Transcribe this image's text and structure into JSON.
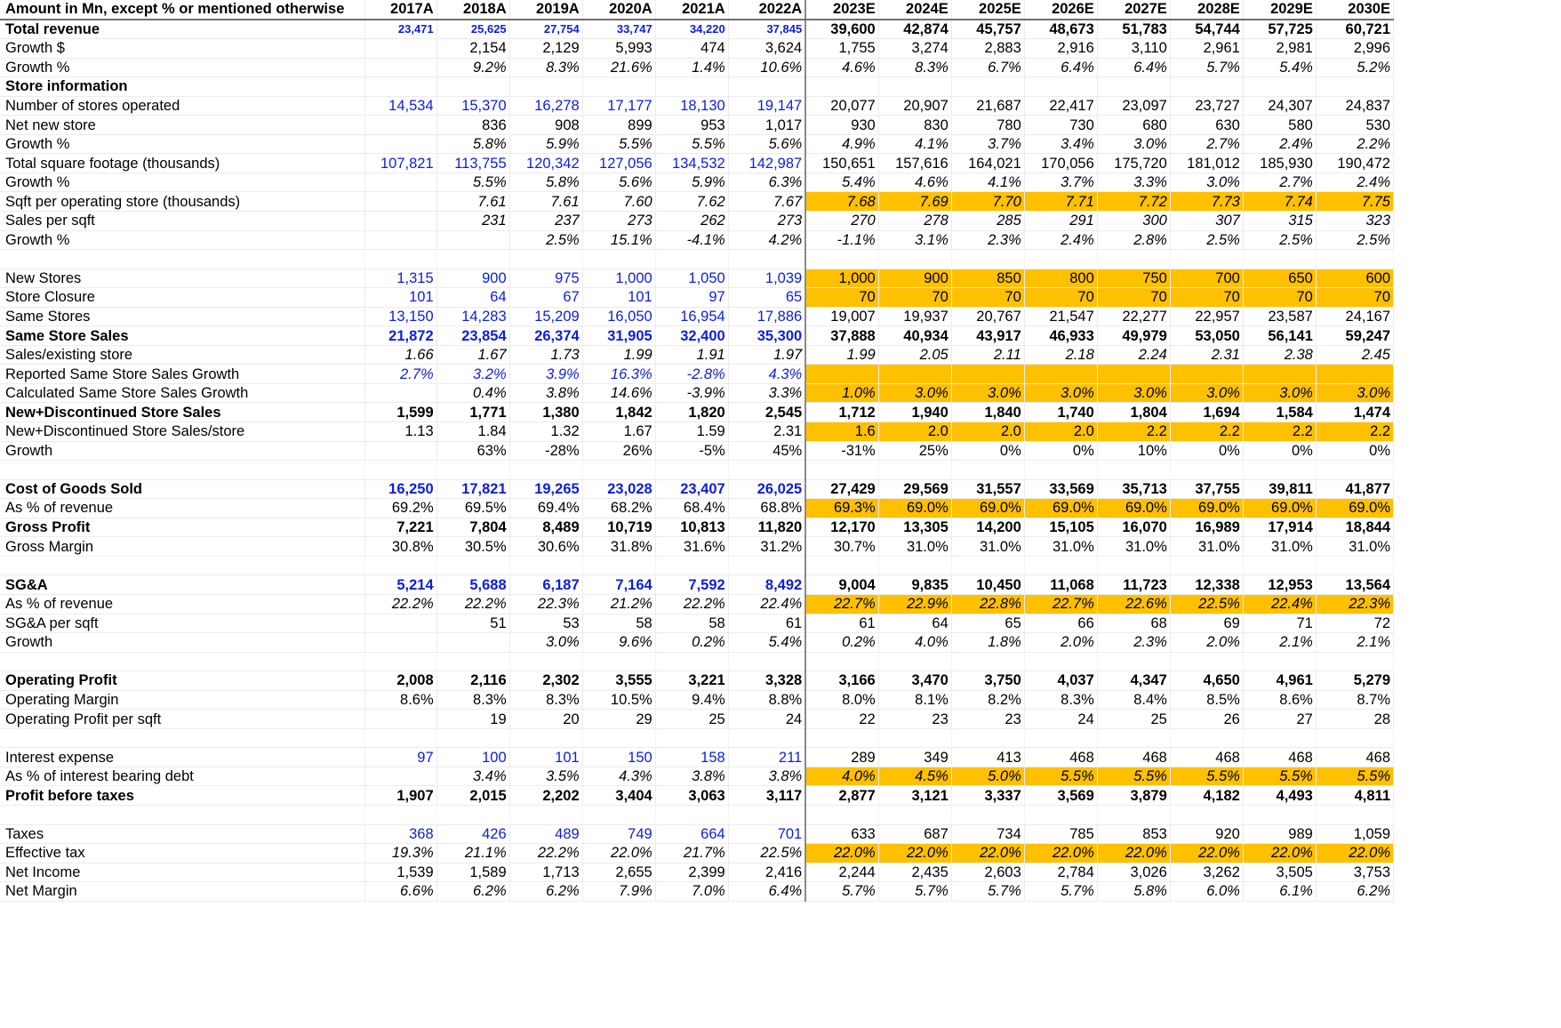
{
  "sheet": {
    "header": [
      "Amount in Mn, except % or mentioned otherwise",
      "2017A",
      "2018A",
      "2019A",
      "2020A",
      "2021A",
      "2022A",
      "2023E",
      "2024E",
      "2025E",
      "2026E",
      "2027E",
      "2028E",
      "2029E",
      "2030E"
    ],
    "highlight_color": "#ffc000",
    "hardcode_color": "#0b1ee0",
    "rows": [
      {
        "label": "Total revenue",
        "style": "bold",
        "values": [
          "23,471",
          "25,625",
          "27,754",
          "33,747",
          "34,220",
          "37,845",
          "39,600",
          "42,874",
          "45,757",
          "48,673",
          "51,783",
          "54,744",
          "57,725",
          "60,721"
        ],
        "blue": [
          0,
          1,
          2,
          3,
          4,
          5
        ],
        "small": [
          0,
          1,
          2,
          3,
          4,
          5
        ]
      },
      {
        "label": "Growth $",
        "style": "",
        "values": [
          "",
          "2,154",
          "2,129",
          "5,993",
          "474",
          "3,624",
          "1,755",
          "3,274",
          "2,883",
          "2,916",
          "3,110",
          "2,961",
          "2,981",
          "2,996"
        ]
      },
      {
        "label": "Growth %",
        "style": "italic",
        "values": [
          "",
          "9.2%",
          "8.3%",
          "21.6%",
          "1.4%",
          "10.6%",
          "4.6%",
          "8.3%",
          "6.7%",
          "6.4%",
          "6.4%",
          "5.7%",
          "5.4%",
          "5.2%"
        ]
      },
      {
        "label": "Store information",
        "style": "bold",
        "values": [
          "",
          "",
          "",
          "",
          "",
          "",
          "",
          "",
          "",
          "",
          "",
          "",
          "",
          ""
        ]
      },
      {
        "label": "Number of stores operated",
        "style": "",
        "values": [
          "14,534",
          "15,370",
          "16,278",
          "17,177",
          "18,130",
          "19,147",
          "20,077",
          "20,907",
          "21,687",
          "22,417",
          "23,097",
          "23,727",
          "24,307",
          "24,837"
        ],
        "blue": [
          0,
          1,
          2,
          3,
          4,
          5
        ]
      },
      {
        "label": "Net new store",
        "style": "",
        "values": [
          "",
          "836",
          "908",
          "899",
          "953",
          "1,017",
          "930",
          "830",
          "780",
          "730",
          "680",
          "630",
          "580",
          "530"
        ]
      },
      {
        "label": "Growth %",
        "style": "italic",
        "values": [
          "",
          "5.8%",
          "5.9%",
          "5.5%",
          "5.5%",
          "5.6%",
          "4.9%",
          "4.1%",
          "3.7%",
          "3.4%",
          "3.0%",
          "2.7%",
          "2.4%",
          "2.2%"
        ]
      },
      {
        "label": "Total square footage (thousands)",
        "style": "",
        "values": [
          "107,821",
          "113,755",
          "120,342",
          "127,056",
          "134,532",
          "142,987",
          "150,651",
          "157,616",
          "164,021",
          "170,056",
          "175,720",
          "181,012",
          "185,930",
          "190,472"
        ],
        "blue": [
          0,
          1,
          2,
          3,
          4,
          5
        ]
      },
      {
        "label": "Growth %",
        "style": "italic",
        "values": [
          "",
          "5.5%",
          "5.8%",
          "5.6%",
          "5.9%",
          "6.3%",
          "5.4%",
          "4.6%",
          "4.1%",
          "3.7%",
          "3.3%",
          "3.0%",
          "2.7%",
          "2.4%"
        ]
      },
      {
        "label": "Sqft per operating store (thousands)",
        "style": "italic",
        "values": [
          "",
          "7.61",
          "7.61",
          "7.60",
          "7.62",
          "7.67",
          "7.68",
          "7.69",
          "7.70",
          "7.71",
          "7.72",
          "7.73",
          "7.74",
          "7.75"
        ],
        "hl": [
          6,
          7,
          8,
          9,
          10,
          11,
          12,
          13
        ]
      },
      {
        "label": "Sales per sqft",
        "style": "italic",
        "values": [
          "",
          "231",
          "237",
          "273",
          "262",
          "273",
          "270",
          "278",
          "285",
          "291",
          "300",
          "307",
          "315",
          "323"
        ]
      },
      {
        "label": "Growth %",
        "style": "italic",
        "values": [
          "",
          "",
          "2.5%",
          "15.1%",
          "-4.1%",
          "4.2%",
          "-1.1%",
          "3.1%",
          "2.3%",
          "2.4%",
          "2.8%",
          "2.5%",
          "2.5%",
          "2.5%"
        ]
      },
      {
        "label": "",
        "style": "blank",
        "values": [
          "",
          "",
          "",
          "",
          "",
          "",
          "",
          "",
          "",
          "",
          "",
          "",
          "",
          ""
        ]
      },
      {
        "label": "New Stores",
        "style": "",
        "values": [
          "1,315",
          "900",
          "975",
          "1,000",
          "1,050",
          "1,039",
          "1,000",
          "900",
          "850",
          "800",
          "750",
          "700",
          "650",
          "600"
        ],
        "blue": [
          0,
          1,
          2,
          3,
          4,
          5
        ],
        "hl": [
          6,
          7,
          8,
          9,
          10,
          11,
          12,
          13
        ]
      },
      {
        "label": "Store Closure",
        "style": "",
        "values": [
          "101",
          "64",
          "67",
          "101",
          "97",
          "65",
          "70",
          "70",
          "70",
          "70",
          "70",
          "70",
          "70",
          "70"
        ],
        "blue": [
          0,
          1,
          2,
          3,
          4,
          5
        ],
        "hl": [
          6,
          7,
          8,
          9,
          10,
          11,
          12,
          13
        ]
      },
      {
        "label": "Same Stores",
        "style": "",
        "values": [
          "13,150",
          "14,283",
          "15,209",
          "16,050",
          "16,954",
          "17,886",
          "19,007",
          "19,937",
          "20,767",
          "21,547",
          "22,277",
          "22,957",
          "23,587",
          "24,167"
        ],
        "blue": [
          0,
          1,
          2,
          3,
          4,
          5
        ]
      },
      {
        "label": "Same Store Sales",
        "style": "bold",
        "values": [
          "21,872",
          "23,854",
          "26,374",
          "31,905",
          "32,400",
          "35,300",
          "37,888",
          "40,934",
          "43,917",
          "46,933",
          "49,979",
          "53,050",
          "56,141",
          "59,247"
        ],
        "blue": [
          0,
          1,
          2,
          3,
          4,
          5
        ]
      },
      {
        "label": "Sales/existing store",
        "style": "italic",
        "values": [
          "1.66",
          "1.67",
          "1.73",
          "1.99",
          "1.91",
          "1.97",
          "1.99",
          "2.05",
          "2.11",
          "2.18",
          "2.24",
          "2.31",
          "2.38",
          "2.45"
        ]
      },
      {
        "label": "Reported Same Store Sales Growth",
        "style": "italic",
        "values": [
          "2.7%",
          "3.2%",
          "3.9%",
          "16.3%",
          "-2.8%",
          "4.3%",
          "",
          "",
          "",
          "",
          "",
          "",
          "",
          ""
        ],
        "blue": [
          0,
          1,
          2,
          3,
          4,
          5
        ],
        "hl": [
          6,
          7,
          8,
          9,
          10,
          11,
          12,
          13
        ]
      },
      {
        "label": "Calculated Same Store Sales Growth",
        "style": "italic",
        "values": [
          "",
          "0.4%",
          "3.8%",
          "14.6%",
          "-3.9%",
          "3.3%",
          "1.0%",
          "3.0%",
          "3.0%",
          "3.0%",
          "3.0%",
          "3.0%",
          "3.0%",
          "3.0%"
        ],
        "hl": [
          6,
          7,
          8,
          9,
          10,
          11,
          12,
          13
        ]
      },
      {
        "label": "New+Discontinued Store Sales",
        "style": "bold",
        "values": [
          "1,599",
          "1,771",
          "1,380",
          "1,842",
          "1,820",
          "2,545",
          "1,712",
          "1,940",
          "1,840",
          "1,740",
          "1,804",
          "1,694",
          "1,584",
          "1,474"
        ]
      },
      {
        "label": "New+Discontinued Store Sales/store",
        "style": "",
        "values": [
          "1.13",
          "1.84",
          "1.32",
          "1.67",
          "1.59",
          "2.31",
          "1.6",
          "2.0",
          "2.0",
          "2.0",
          "2.2",
          "2.2",
          "2.2",
          "2.2"
        ],
        "hl": [
          6,
          7,
          8,
          9,
          10,
          11,
          12,
          13
        ]
      },
      {
        "label": "Growth",
        "style": "",
        "values": [
          "",
          "63%",
          "-28%",
          "26%",
          "-5%",
          "45%",
          "-31%",
          "25%",
          "0%",
          "0%",
          "10%",
          "0%",
          "0%",
          "0%"
        ]
      },
      {
        "label": "",
        "style": "blank",
        "values": [
          "",
          "",
          "",
          "",
          "",
          "",
          "",
          "",
          "",
          "",
          "",
          "",
          "",
          ""
        ]
      },
      {
        "label": "Cost of Goods Sold",
        "style": "bold",
        "values": [
          "16,250",
          "17,821",
          "19,265",
          "23,028",
          "23,407",
          "26,025",
          "27,429",
          "29,569",
          "31,557",
          "33,569",
          "35,713",
          "37,755",
          "39,811",
          "41,877"
        ],
        "blue": [
          0,
          1,
          2,
          3,
          4,
          5
        ]
      },
      {
        "label": "As % of revenue",
        "style": "",
        "values": [
          "69.2%",
          "69.5%",
          "69.4%",
          "68.2%",
          "68.4%",
          "68.8%",
          "69.3%",
          "69.0%",
          "69.0%",
          "69.0%",
          "69.0%",
          "69.0%",
          "69.0%",
          "69.0%"
        ],
        "hl": [
          6,
          7,
          8,
          9,
          10,
          11,
          12,
          13
        ]
      },
      {
        "label": "Gross Profit",
        "style": "bold",
        "values": [
          "7,221",
          "7,804",
          "8,489",
          "10,719",
          "10,813",
          "11,820",
          "12,170",
          "13,305",
          "14,200",
          "15,105",
          "16,070",
          "16,989",
          "17,914",
          "18,844"
        ]
      },
      {
        "label": "Gross Margin",
        "style": "",
        "values": [
          "30.8%",
          "30.5%",
          "30.6%",
          "31.8%",
          "31.6%",
          "31.2%",
          "30.7%",
          "31.0%",
          "31.0%",
          "31.0%",
          "31.0%",
          "31.0%",
          "31.0%",
          "31.0%"
        ]
      },
      {
        "label": "",
        "style": "blank",
        "values": [
          "",
          "",
          "",
          "",
          "",
          "",
          "",
          "",
          "",
          "",
          "",
          "",
          "",
          ""
        ]
      },
      {
        "label": "SG&A",
        "style": "bold",
        "values": [
          "5,214",
          "5,688",
          "6,187",
          "7,164",
          "7,592",
          "8,492",
          "9,004",
          "9,835",
          "10,450",
          "11,068",
          "11,723",
          "12,338",
          "12,953",
          "13,564"
        ],
        "blue": [
          0,
          1,
          2,
          3,
          4,
          5
        ]
      },
      {
        "label": "As % of revenue",
        "style": "italic",
        "values": [
          "22.2%",
          "22.2%",
          "22.3%",
          "21.2%",
          "22.2%",
          "22.4%",
          "22.7%",
          "22.9%",
          "22.8%",
          "22.7%",
          "22.6%",
          "22.5%",
          "22.4%",
          "22.3%"
        ],
        "hl": [
          6,
          7,
          8,
          9,
          10,
          11,
          12,
          13
        ]
      },
      {
        "label": "SG&A per sqft",
        "style": "",
        "values": [
          "",
          "51",
          "53",
          "58",
          "58",
          "61",
          "61",
          "64",
          "65",
          "66",
          "68",
          "69",
          "71",
          "72"
        ]
      },
      {
        "label": "Growth",
        "style": "italic",
        "values": [
          "",
          "",
          "3.0%",
          "9.6%",
          "0.2%",
          "5.4%",
          "0.2%",
          "4.0%",
          "1.8%",
          "2.0%",
          "2.3%",
          "2.0%",
          "2.1%",
          "2.1%"
        ]
      },
      {
        "label": "",
        "style": "blank",
        "values": [
          "",
          "",
          "",
          "",
          "",
          "",
          "",
          "",
          "",
          "",
          "",
          "",
          "",
          ""
        ]
      },
      {
        "label": "Operating Profit",
        "style": "bold",
        "values": [
          "2,008",
          "2,116",
          "2,302",
          "3,555",
          "3,221",
          "3,328",
          "3,166",
          "3,470",
          "3,750",
          "4,037",
          "4,347",
          "4,650",
          "4,961",
          "5,279"
        ]
      },
      {
        "label": "Operating Margin",
        "style": "",
        "values": [
          "8.6%",
          "8.3%",
          "8.3%",
          "10.5%",
          "9.4%",
          "8.8%",
          "8.0%",
          "8.1%",
          "8.2%",
          "8.3%",
          "8.4%",
          "8.5%",
          "8.6%",
          "8.7%"
        ]
      },
      {
        "label": "Operating Profit per sqft",
        "style": "",
        "values": [
          "",
          "19",
          "20",
          "29",
          "25",
          "24",
          "22",
          "23",
          "23",
          "24",
          "25",
          "26",
          "27",
          "28"
        ]
      },
      {
        "label": "",
        "style": "blank",
        "values": [
          "",
          "",
          "",
          "",
          "",
          "",
          "",
          "",
          "",
          "",
          "",
          "",
          "",
          ""
        ]
      },
      {
        "label": "Interest expense",
        "style": "",
        "values": [
          "97",
          "100",
          "101",
          "150",
          "158",
          "211",
          "289",
          "349",
          "413",
          "468",
          "468",
          "468",
          "468",
          "468"
        ],
        "blue": [
          0,
          1,
          2,
          3,
          4,
          5
        ]
      },
      {
        "label": "As % of interest bearing debt",
        "style": "italic",
        "values": [
          "",
          "3.4%",
          "3.5%",
          "4.3%",
          "3.8%",
          "3.8%",
          "4.0%",
          "4.5%",
          "5.0%",
          "5.5%",
          "5.5%",
          "5.5%",
          "5.5%",
          "5.5%"
        ],
        "hl": [
          6,
          7,
          8,
          9,
          10,
          11,
          12,
          13
        ]
      },
      {
        "label": "Profit before taxes",
        "style": "bold",
        "values": [
          "1,907",
          "2,015",
          "2,202",
          "3,404",
          "3,063",
          "3,117",
          "2,877",
          "3,121",
          "3,337",
          "3,569",
          "3,879",
          "4,182",
          "4,493",
          "4,811"
        ]
      },
      {
        "label": "",
        "style": "blank",
        "values": [
          "",
          "",
          "",
          "",
          "",
          "",
          "",
          "",
          "",
          "",
          "",
          "",
          "",
          ""
        ]
      },
      {
        "label": "Taxes",
        "style": "",
        "values": [
          "368",
          "426",
          "489",
          "749",
          "664",
          "701",
          "633",
          "687",
          "734",
          "785",
          "853",
          "920",
          "989",
          "1,059"
        ],
        "blue": [
          0,
          1,
          2,
          3,
          4,
          5
        ]
      },
      {
        "label": "Effective tax",
        "style": "italic",
        "values": [
          "19.3%",
          "21.1%",
          "22.2%",
          "22.0%",
          "21.7%",
          "22.5%",
          "22.0%",
          "22.0%",
          "22.0%",
          "22.0%",
          "22.0%",
          "22.0%",
          "22.0%",
          "22.0%"
        ],
        "hl": [
          6,
          7,
          8,
          9,
          10,
          11,
          12,
          13
        ]
      },
      {
        "label": "Net Income",
        "style": "",
        "values": [
          "1,539",
          "1,589",
          "1,713",
          "2,655",
          "2,399",
          "2,416",
          "2,244",
          "2,435",
          "2,603",
          "2,784",
          "3,026",
          "3,262",
          "3,505",
          "3,753"
        ]
      },
      {
        "label": "Net Margin",
        "style": "italic",
        "values": [
          "6.6%",
          "6.2%",
          "6.2%",
          "7.9%",
          "7.0%",
          "6.4%",
          "5.7%",
          "5.7%",
          "5.7%",
          "5.7%",
          "5.8%",
          "6.0%",
          "6.1%",
          "6.2%"
        ]
      }
    ]
  }
}
